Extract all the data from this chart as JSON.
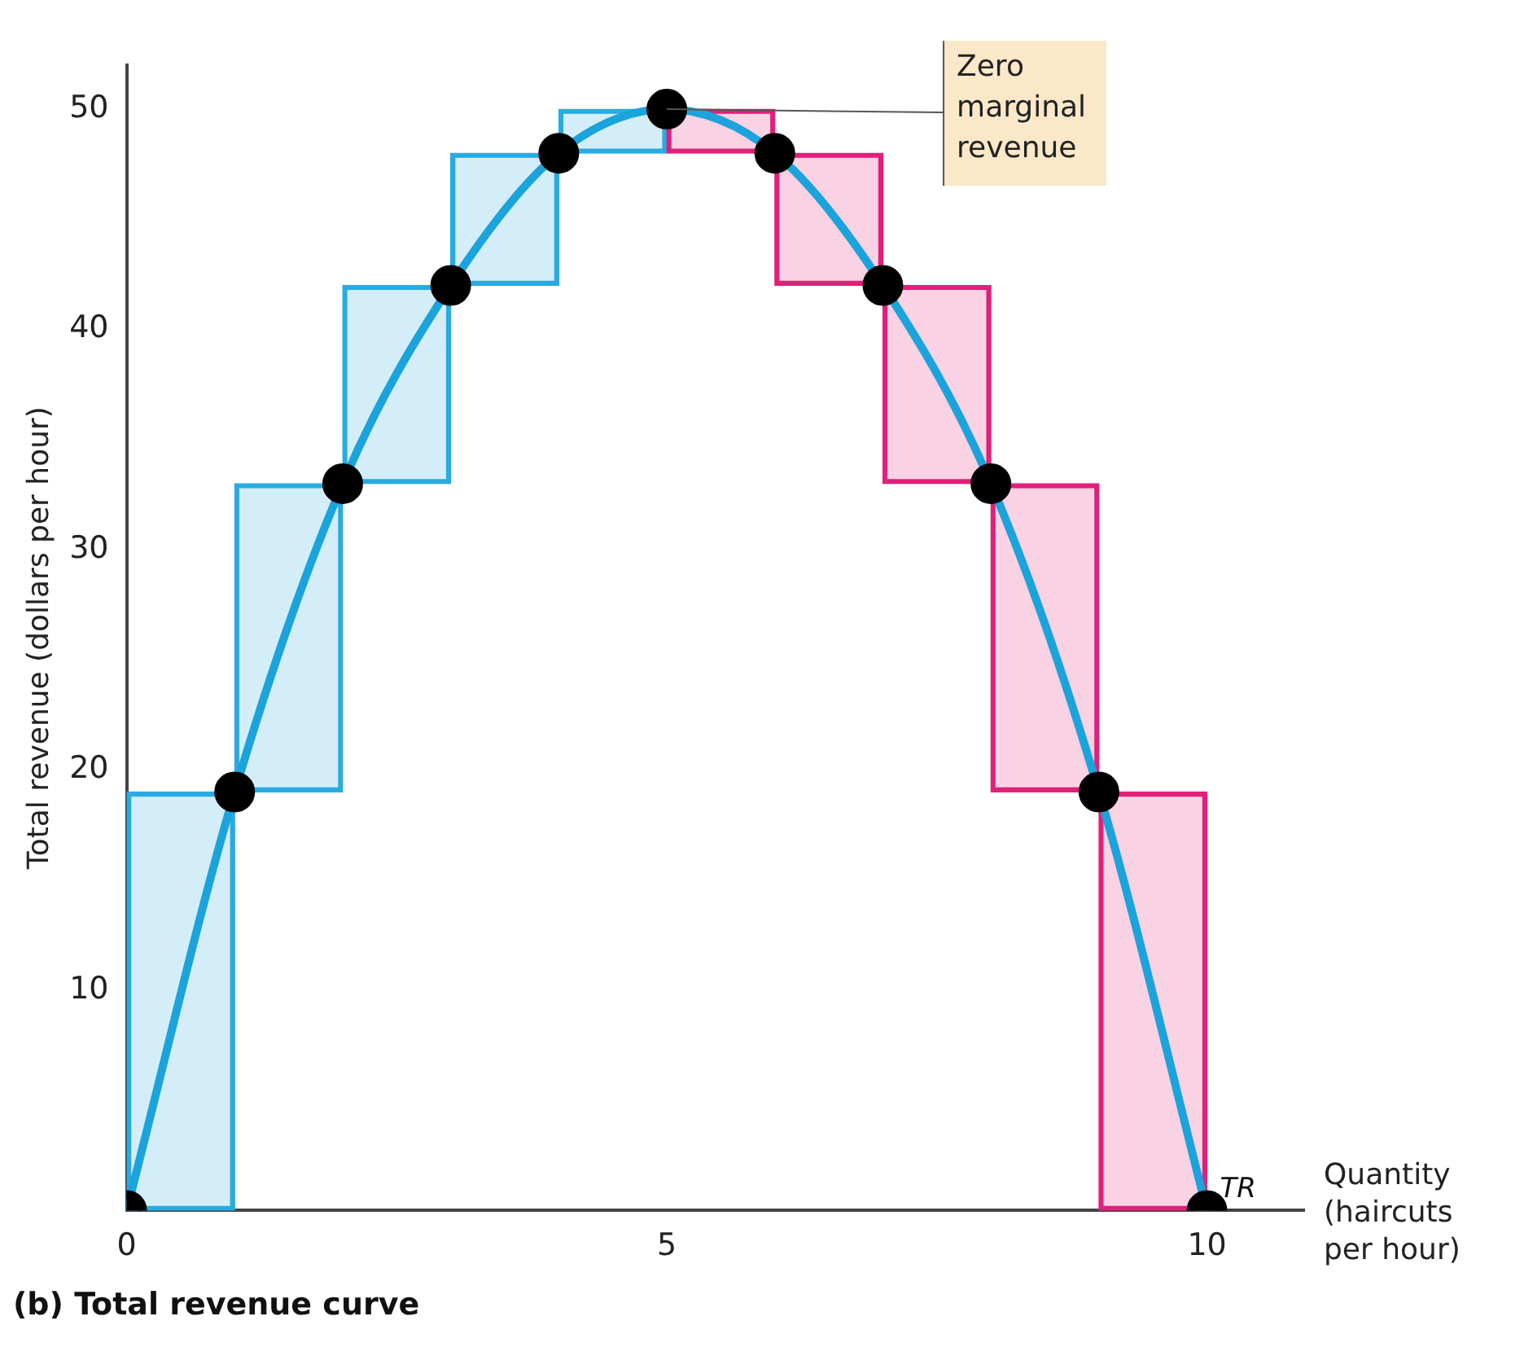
{
  "chart_data": {
    "type": "bar",
    "title": "(b) Total revenue curve",
    "xlabel": "Quantity (haircuts per hour)",
    "ylabel": "Total revenue (dollars per hour)",
    "xlim": [
      0,
      10.9
    ],
    "xticks": [
      0,
      5,
      10
    ],
    "ylim": [
      0,
      52
    ],
    "yticks": [
      10,
      20,
      30,
      40,
      50
    ],
    "grid": false,
    "legend": false,
    "marker": "circle",
    "x": [
      0.5,
      1.5,
      2.5,
      3.5,
      4.5,
      5.5,
      6.5,
      7.5,
      8.5,
      9.5
    ],
    "base": [
      0,
      19,
      33,
      42,
      48,
      48,
      42,
      33,
      19,
      0
    ],
    "values": [
      19,
      14,
      9,
      6,
      2,
      2,
      6,
      9,
      14,
      19
    ],
    "colors": [
      "#29abe2",
      "#29abe2",
      "#29abe2",
      "#29abe2",
      "#29abe2",
      "#e0207a",
      "#e0207a",
      "#e0207a",
      "#e0207a",
      "#e0207a"
    ],
    "series": [
      {
        "type": "line",
        "name": "TR",
        "color": "#1ba3dc",
        "x": [
          0,
          1,
          2,
          3,
          4,
          5,
          6,
          7,
          8,
          9,
          10
        ],
        "values": [
          0,
          19,
          33,
          42,
          48,
          50,
          48,
          42,
          33,
          19,
          0
        ]
      }
    ],
    "annotations": [
      {
        "text": "Zero marginal revenue",
        "x": 5,
        "y": 50
      }
    ]
  }
}
